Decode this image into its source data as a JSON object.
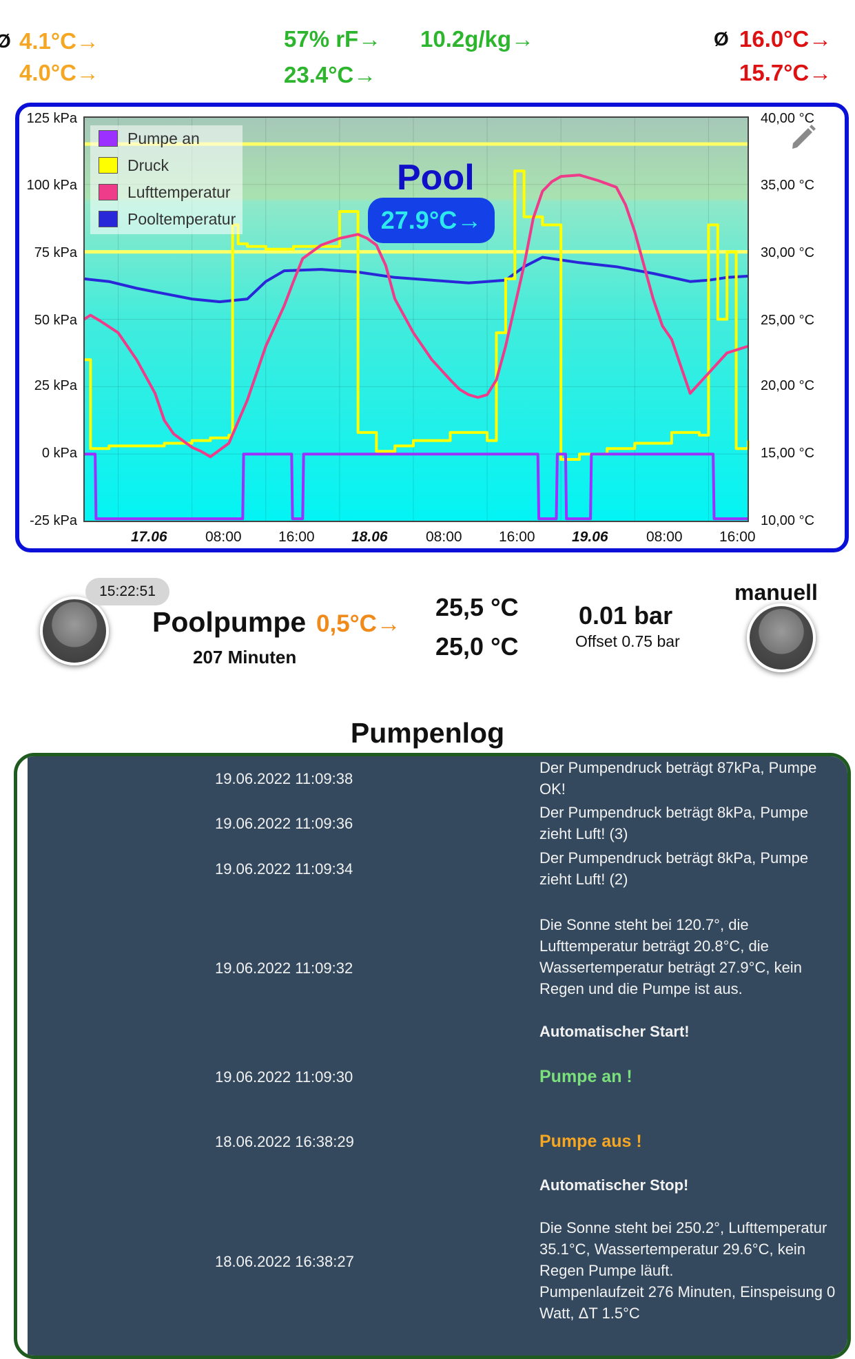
{
  "stats": {
    "diameter_symbol": "Ø",
    "left_top": "4.1°C→",
    "left_bottom": "4.0°C→",
    "humidity": "57% rF→",
    "mid_temp": "23.4°C→",
    "abs_humidity": "10.2g/kg→",
    "right_top": "16.0°C→",
    "right_bottom": "15.7°C→"
  },
  "colors": {
    "orange": "#f5a623",
    "green": "#2db52d",
    "red": "#dd1111",
    "pump_series": "#9b30ff",
    "pressure_series": "#ffff00",
    "air_series": "#ee3c8a",
    "pool_series": "#2828d8",
    "chart_border": "#0a10d8",
    "log_bg": "#34495e"
  },
  "chart": {
    "pool_title": "Pool",
    "pool_temp": "27.9°C→",
    "edit_icon": "pencil-icon",
    "legend": [
      "Pumpe an",
      "Druck",
      "Lufttemperatur",
      "Pooltemperatur"
    ],
    "left_ticks": [
      "125 kPa",
      "100 kPa",
      "75 kPa",
      "50 kPa",
      "25 kPa",
      "0 kPa",
      "-25 kPa"
    ],
    "right_ticks": [
      "40,00 °C",
      "35,00 °C",
      "30,00 °C",
      "25,00 °C",
      "20,00 °C",
      "15,00 °C",
      "10,00 °C"
    ],
    "x_ticks": [
      "17.06",
      "08:00",
      "16:00",
      "18.06",
      "08:00",
      "16:00",
      "19.06",
      "08:00",
      "16:00"
    ],
    "x_day_ticks": [
      0,
      3,
      6
    ]
  },
  "chart_data": {
    "type": "line",
    "title": "Pool",
    "x_unit": "hours since 16.06 16:00",
    "xlim": [
      4.3,
      76.3
    ],
    "x_tick_positions": [
      8,
      16,
      24,
      32,
      40,
      48,
      56,
      64,
      72
    ],
    "x_tick_labels": [
      "17.06",
      "08:00",
      "16:00",
      "18.06",
      "08:00",
      "16:00",
      "19.06",
      "08:00",
      "16:00"
    ],
    "y_left": {
      "label": "kPa",
      "ylim": [
        -25,
        125
      ]
    },
    "y_right": {
      "label": "°C",
      "ylim": [
        10,
        40
      ]
    },
    "reference_lines_kPa": [
      75,
      115
    ],
    "series": [
      {
        "name": "Pooltemperatur",
        "axis": "right",
        "x": [
          4.3,
          7,
          10,
          13,
          16,
          19,
          22,
          24,
          26,
          30,
          34,
          38,
          42,
          46,
          50,
          52,
          54,
          58,
          62,
          66,
          70,
          72,
          74,
          76.3
        ],
        "y": [
          28,
          27.8,
          27.3,
          26.9,
          26.5,
          26.3,
          26.5,
          27.8,
          28.6,
          28.7,
          28.5,
          28.1,
          27.9,
          27.7,
          27.9,
          28.9,
          29.6,
          29.2,
          28.9,
          28.4,
          27.8,
          27.9,
          28.1,
          28.2
        ]
      },
      {
        "name": "Lufttemperatur",
        "axis": "right",
        "x": [
          4.3,
          5,
          6,
          8,
          10,
          12,
          13,
          14,
          16,
          17,
          18,
          20,
          22,
          24,
          26,
          27,
          28,
          30,
          32,
          34,
          35,
          36,
          37,
          38,
          40,
          42,
          44,
          45,
          46,
          47,
          48,
          49,
          50,
          51,
          52,
          53,
          54,
          55,
          56,
          58,
          60,
          62,
          63,
          64,
          65,
          66,
          67,
          68,
          69,
          70,
          72,
          74,
          76.3
        ],
        "y": [
          25,
          25.3,
          24.9,
          24,
          22,
          19.5,
          17.5,
          16.5,
          15.5,
          15.2,
          14.8,
          15.8,
          19,
          23,
          26,
          27.8,
          29.5,
          30.5,
          31,
          31.3,
          31,
          30.5,
          29,
          26.5,
          24,
          22,
          20.5,
          19.8,
          19.4,
          19.2,
          19.4,
          20.5,
          23,
          26,
          29,
          32.5,
          34.5,
          35.2,
          35.6,
          35.7,
          35.3,
          34.8,
          33.5,
          31.5,
          29,
          26.5,
          24.5,
          23.5,
          21.5,
          19.5,
          21,
          22.5,
          23
        ]
      },
      {
        "name": "Druck",
        "axis": "left",
        "x": [
          4.3,
          5,
          7,
          10,
          13,
          16,
          18,
          20,
          20.4,
          21,
          22,
          24,
          27,
          30,
          32,
          34,
          36,
          38,
          40,
          44,
          48,
          49,
          50,
          51,
          52,
          54,
          56,
          58,
          61,
          64,
          68,
          71,
          72,
          73,
          74,
          75,
          76.3
        ],
        "y": [
          35,
          2,
          3,
          3,
          4,
          5,
          6,
          7,
          85,
          78,
          77,
          76,
          77,
          77,
          90,
          8,
          1,
          3,
          5,
          8,
          5,
          45,
          65,
          105,
          88,
          85,
          -2,
          0,
          2,
          4,
          8,
          7,
          85,
          50,
          75,
          2,
          5
        ]
      },
      {
        "name": "Pumpe an",
        "axis": "left",
        "x": [
          4.3,
          5.5,
          5.6,
          21.5,
          21.6,
          26.8,
          26.9,
          28,
          28.1,
          53.5,
          53.6,
          55.5,
          55.6,
          56.5,
          56.6,
          59.2,
          59.3,
          72.5,
          72.6,
          76.3
        ],
        "y": [
          0,
          0,
          -24,
          -24,
          0,
          0,
          -24,
          -24,
          0,
          0,
          -24,
          -24,
          0,
          0,
          -24,
          -24,
          0,
          0,
          -24,
          -24
        ]
      }
    ]
  },
  "pump": {
    "time": "15:22:51",
    "name": "Poolpumpe",
    "delta": "0,5°C→",
    "minutes": "207 Minuten",
    "temp_high": "25,5 °C",
    "temp_low": "25,0 °C",
    "pressure": "0.01 bar",
    "offset": "Offset 0.75 bar",
    "mode": "manuell"
  },
  "log": {
    "title": "Pumpenlog",
    "entries": [
      {
        "time": "19.06.2022 11:09:38",
        "lines": [
          "Der Pumpendruck beträgt 87kPa, Pumpe",
          "OK!"
        ]
      },
      {
        "time": "19.06.2022 11:09:36",
        "lines": [
          "Der Pumpendruck beträgt 8kPa, Pumpe",
          "zieht Luft! (3)"
        ]
      },
      {
        "time": "19.06.2022 11:09:34",
        "lines": [
          "Der Pumpendruck beträgt 8kPa, Pumpe",
          "zieht Luft! (2)"
        ]
      },
      {
        "time": "19.06.2022 11:09:32",
        "lines": [
          "Die Sonne steht bei 120.7°, die",
          "Lufttemperatur beträgt 20.8°C, die",
          "Wassertemperatur beträgt 27.9°C, kein",
          "Regen und die Pumpe ist aus."
        ],
        "note": "Automatischer Start!"
      },
      {
        "time": "19.06.2022 11:09:30",
        "lines": [
          "Pumpe an !"
        ]
      },
      {
        "time": "18.06.2022 16:38:29",
        "lines": [
          "Pumpe aus !"
        ],
        "note": "Automatischer Stop!"
      },
      {
        "time": "18.06.2022 16:38:27",
        "lines": [
          "Die Sonne steht bei 250.2°, Lufttemperatur",
          "35.1°C, Wassertemperatur 29.6°C, kein",
          "Regen Pumpe läuft.",
          "Pumpenlaufzeit 276 Minuten, Einspeisung 0",
          "Watt, ΔT 1.5°C"
        ]
      }
    ]
  }
}
